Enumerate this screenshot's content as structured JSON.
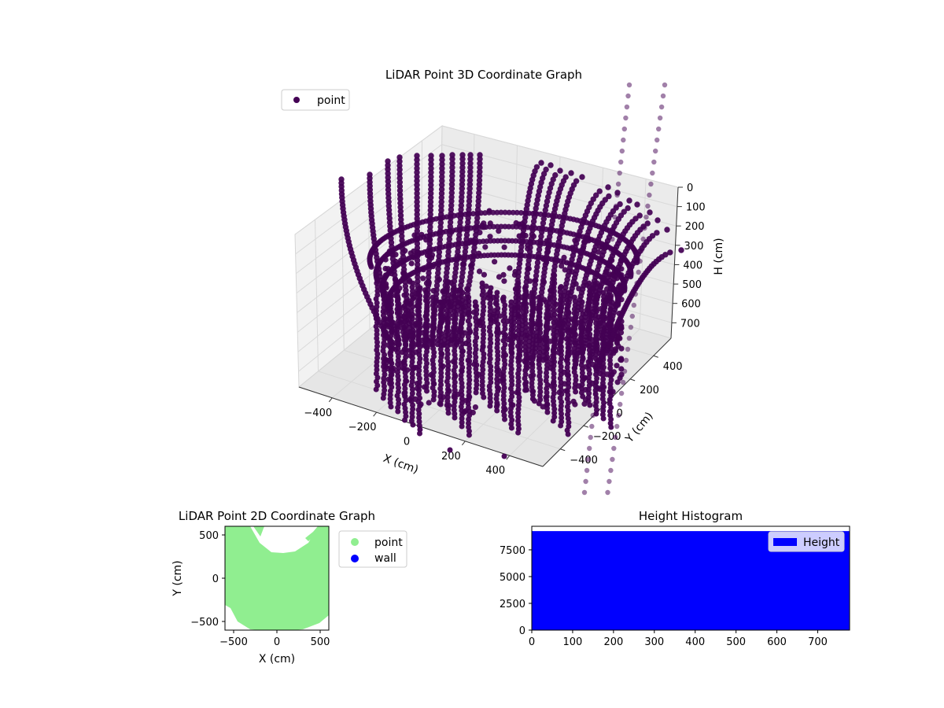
{
  "chart_data": [
    {
      "type": "scatter",
      "projection": "3d",
      "title": "LiDAR Point 3D Coordinate Graph",
      "xlabel": "X (cm)",
      "ylabel": "Y (cm)",
      "zlabel": "H (cm)",
      "xticks": [
        "−400",
        "−200",
        "0",
        "200",
        "400"
      ],
      "yticks": [
        "400",
        "200",
        "0",
        "−200",
        "−400"
      ],
      "zticks": [
        "0",
        "100",
        "200",
        "300",
        "400",
        "500",
        "600",
        "700"
      ],
      "xlim": [
        -550,
        550
      ],
      "ylim": [
        -550,
        550
      ],
      "zlim": [
        0,
        780
      ],
      "zaxis_inverted": true,
      "legend": {
        "entries": [
          "point"
        ],
        "loc": "upper-left"
      },
      "series": [
        {
          "name": "point",
          "color": "#440154",
          "marker": "circle"
        }
      ],
      "grid": true
    },
    {
      "type": "scatter",
      "title": "LiDAR Point 2D Coordinate Graph",
      "xlabel": "X (cm)",
      "ylabel": "Y (cm)",
      "xticks": [
        -500,
        0,
        500
      ],
      "yticks": [
        500,
        0,
        -500
      ],
      "xlim": [
        -600,
        600
      ],
      "ylim": [
        -600,
        600
      ],
      "legend": {
        "entries": [
          "point",
          "wall"
        ],
        "loc": "outside-right"
      },
      "series": [
        {
          "name": "point",
          "color": "#90ee90"
        },
        {
          "name": "wall",
          "color": "#0000ff"
        }
      ]
    },
    {
      "type": "bar",
      "title": "Height Histogram",
      "xticks": [
        0,
        100,
        200,
        300,
        400,
        500,
        600,
        700
      ],
      "yticks": [
        0,
        2500,
        5000,
        7500
      ],
      "xlim": [
        0,
        778
      ],
      "ylim": [
        0,
        9700
      ],
      "legend": {
        "entries": [
          "Height"
        ],
        "loc": "upper-right"
      },
      "series": [
        {
          "name": "Height",
          "color": "#0000ff"
        }
      ],
      "bins": {
        "range": [
          0,
          778
        ],
        "count_per_bin": 9250
      }
    }
  ]
}
